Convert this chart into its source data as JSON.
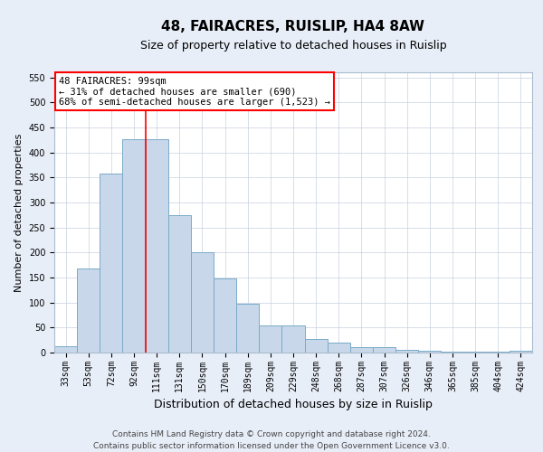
{
  "title": "48, FAIRACRES, RUISLIP, HA4 8AW",
  "subtitle": "Size of property relative to detached houses in Ruislip",
  "xlabel": "Distribution of detached houses by size in Ruislip",
  "ylabel": "Number of detached properties",
  "categories": [
    "33sqm",
    "53sqm",
    "72sqm",
    "92sqm",
    "111sqm",
    "131sqm",
    "150sqm",
    "170sqm",
    "189sqm",
    "209sqm",
    "229sqm",
    "248sqm",
    "268sqm",
    "287sqm",
    "307sqm",
    "326sqm",
    "346sqm",
    "365sqm",
    "385sqm",
    "404sqm",
    "424sqm"
  ],
  "values": [
    13,
    168,
    357,
    427,
    427,
    275,
    200,
    148,
    97,
    55,
    55,
    27,
    20,
    11,
    11,
    5,
    3,
    2,
    1,
    1,
    3
  ],
  "bar_color": "#c8d8ea",
  "bar_edge_color": "#7aaac8",
  "vline_x": 3.5,
  "vline_color": "red",
  "annotation_line1": "48 FAIRACRES: 99sqm",
  "annotation_line2": "← 31% of detached houses are smaller (690)",
  "annotation_line3": "68% of semi-detached houses are larger (1,523) →",
  "annotation_box_color": "white",
  "annotation_box_edge_color": "red",
  "ylim": [
    0,
    560
  ],
  "yticks": [
    0,
    50,
    100,
    150,
    200,
    250,
    300,
    350,
    400,
    450,
    500,
    550
  ],
  "bg_color": "#e8eef8",
  "plot_bg_color": "white",
  "grid_color": "#c8d0e0",
  "footer_line1": "Contains HM Land Registry data © Crown copyright and database right 2024.",
  "footer_line2": "Contains public sector information licensed under the Open Government Licence v3.0.",
  "title_fontsize": 11,
  "subtitle_fontsize": 9,
  "xlabel_fontsize": 9,
  "ylabel_fontsize": 8,
  "tick_fontsize": 7,
  "annotation_fontsize": 7.5,
  "footer_fontsize": 6.5
}
